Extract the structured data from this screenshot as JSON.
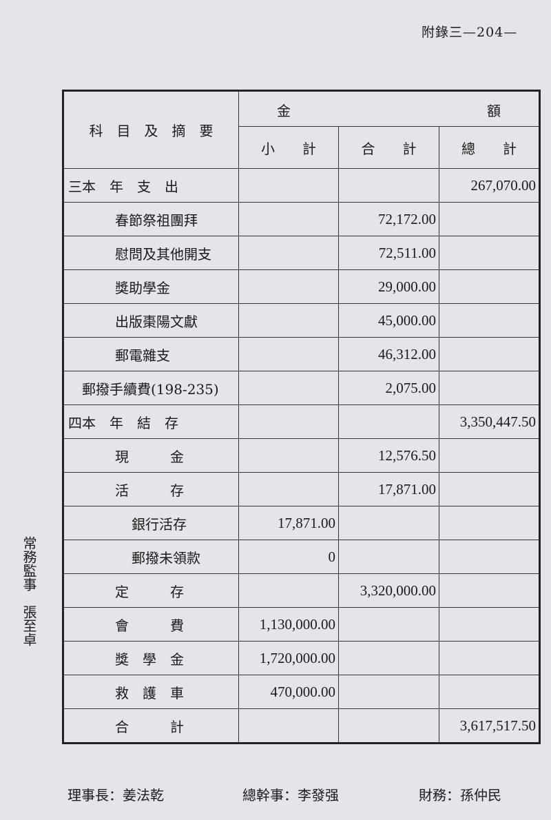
{
  "page_number": "附錄三—204—",
  "header": {
    "item_col": "科　目　及　摘　要",
    "amount_left": "金",
    "amount_right": "額",
    "subtotal": "小　　計",
    "total": "合　　計",
    "grand_total": "總　　計"
  },
  "rows": [
    {
      "label": "三本　年　支　出",
      "indent": 0,
      "subtotal": "",
      "total": "",
      "grand_total": "267,070.00"
    },
    {
      "label": "春節祭祖團拜",
      "indent": 1,
      "subtotal": "",
      "total": "72,172.00",
      "grand_total": ""
    },
    {
      "label": "慰問及其他開支",
      "indent": 1,
      "subtotal": "",
      "total": "72,511.00",
      "grand_total": ""
    },
    {
      "label": "獎助學金",
      "indent": 1,
      "subtotal": "",
      "total": "29,000.00",
      "grand_total": ""
    },
    {
      "label": "出版棗陽文獻",
      "indent": 1,
      "subtotal": "",
      "total": "45,000.00",
      "grand_total": ""
    },
    {
      "label": "郵電雜支",
      "indent": 1,
      "subtotal": "",
      "total": "46,312.00",
      "grand_total": ""
    },
    {
      "label": "郵撥手續費(198-235)",
      "indent": 3,
      "subtotal": "",
      "total": "2,075.00",
      "grand_total": ""
    },
    {
      "label": "四本　年　結　存",
      "indent": 0,
      "subtotal": "",
      "total": "",
      "grand_total": "3,350,447.50"
    },
    {
      "label": "現　　　金",
      "indent": 1,
      "subtotal": "",
      "total": "12,576.50",
      "grand_total": ""
    },
    {
      "label": "活　　　存",
      "indent": 1,
      "subtotal": "",
      "total": "17,871.00",
      "grand_total": ""
    },
    {
      "label": "銀行活存",
      "indent": 2,
      "subtotal": "17,871.00",
      "total": "",
      "grand_total": ""
    },
    {
      "label": "郵撥未領款",
      "indent": 2,
      "subtotal": "0",
      "total": "",
      "grand_total": ""
    },
    {
      "label": "定　　　存",
      "indent": 1,
      "subtotal": "",
      "total": "3,320,000.00",
      "grand_total": ""
    },
    {
      "label": "會　　　費",
      "indent": 1,
      "subtotal": "1,130,000.00",
      "total": "",
      "grand_total": ""
    },
    {
      "label": "獎　學　金",
      "indent": 1,
      "subtotal": "1,720,000.00",
      "total": "",
      "grand_total": ""
    },
    {
      "label": "救　護　車",
      "indent": 1,
      "subtotal": "470,000.00",
      "total": "",
      "grand_total": ""
    },
    {
      "label": "合　　　計",
      "indent": 1,
      "subtotal": "",
      "total": "",
      "grand_total": "3,617,517.50"
    }
  ],
  "side_note": "常務監事　張至卓",
  "footer": {
    "chairman": "理事長：姜法乾",
    "secretary_general": "總幹事：李發强",
    "treasurer": "財務：孫仲民"
  }
}
